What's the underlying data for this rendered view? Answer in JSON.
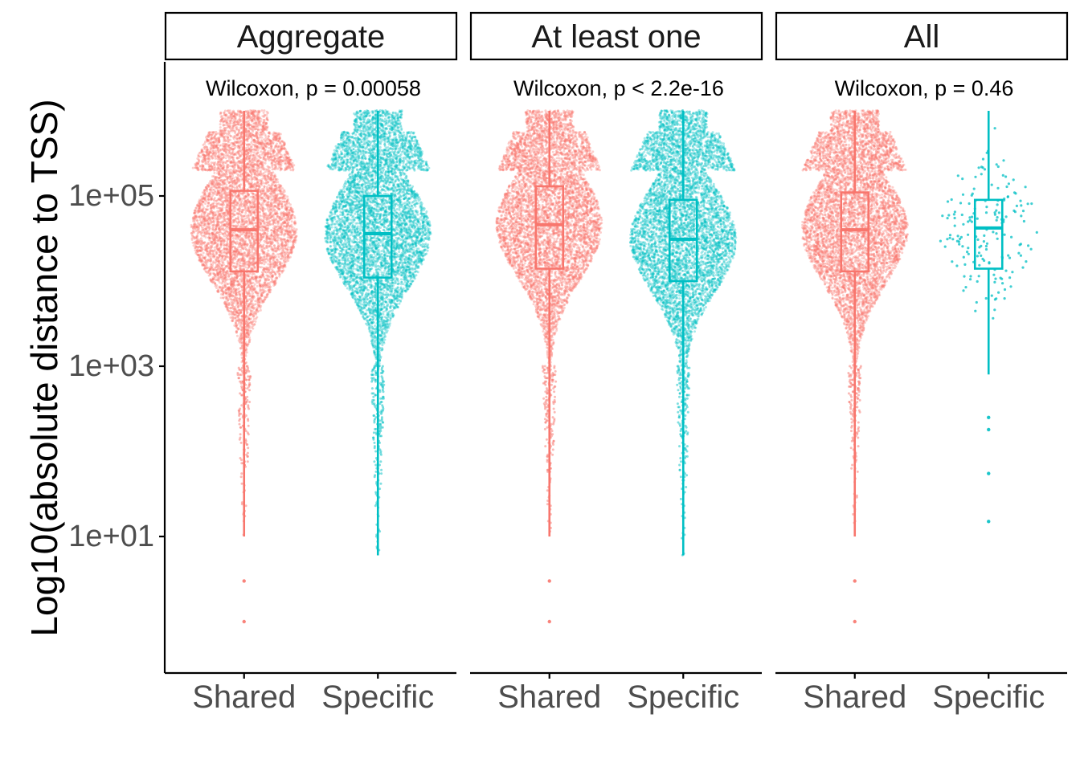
{
  "chart_data": {
    "type": "beeswarm-boxplot",
    "ylabel": "Log10(absolute distance to TSS)",
    "xlabel": "",
    "y_scale": "log10",
    "ylim": [
      0.05,
      3000000
    ],
    "y_ticks": [
      {
        "value": 10,
        "label": "1e+01"
      },
      {
        "value": 1000,
        "label": "1e+03"
      },
      {
        "value": 100000,
        "label": "1e+05"
      }
    ],
    "categories": [
      "Shared",
      "Specific"
    ],
    "colors": {
      "Shared": "#F8766D",
      "Specific": "#00BFC4"
    },
    "grid": false,
    "legend": "none",
    "panels": [
      {
        "facet": "Aggregate",
        "stat_label": "Wilcoxon, p = 0.00058",
        "groups": [
          {
            "name": "Shared",
            "density": "dense",
            "q1": 13000,
            "median": 40000,
            "q3": 115000,
            "whisker_low": 10,
            "whisker_high": 1000000,
            "outliers": [
              1,
              3
            ]
          },
          {
            "name": "Specific",
            "density": "dense",
            "q1": 11000,
            "median": 36000,
            "q3": 100000,
            "whisker_low": 6,
            "whisker_high": 1000000,
            "outliers": []
          }
        ]
      },
      {
        "facet": "At least one",
        "stat_label": "Wilcoxon, p < 2.2e-16",
        "groups": [
          {
            "name": "Shared",
            "density": "dense",
            "q1": 14000,
            "median": 46000,
            "q3": 130000,
            "whisker_low": 10,
            "whisker_high": 1000000,
            "outliers": [
              1,
              3
            ]
          },
          {
            "name": "Specific",
            "density": "dense",
            "q1": 10000,
            "median": 31000,
            "q3": 90000,
            "whisker_low": 6,
            "whisker_high": 1000000,
            "outliers": []
          }
        ]
      },
      {
        "facet": "All",
        "stat_label": "Wilcoxon, p = 0.46",
        "groups": [
          {
            "name": "Shared",
            "density": "dense",
            "q1": 13000,
            "median": 40000,
            "q3": 110000,
            "whisker_low": 10,
            "whisker_high": 1000000,
            "outliers": [
              1,
              3
            ]
          },
          {
            "name": "Specific",
            "density": "sparse",
            "q1": 14000,
            "median": 42000,
            "q3": 90000,
            "whisker_low": 800,
            "whisker_high": 1000000,
            "outliers": [
              250,
              180,
              55,
              15
            ]
          }
        ]
      }
    ]
  }
}
